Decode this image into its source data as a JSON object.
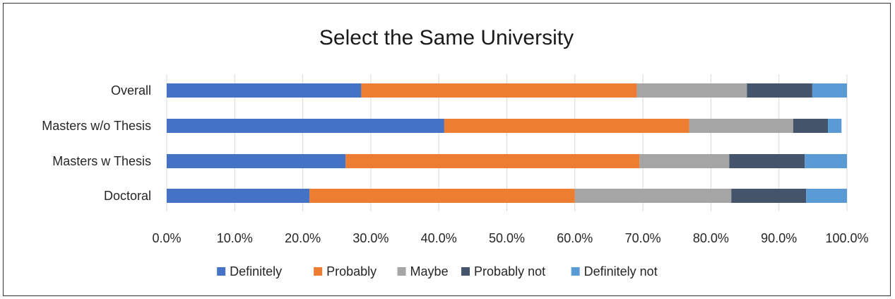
{
  "chart_data": {
    "type": "bar",
    "orientation": "horizontal",
    "stacked": true,
    "title": "Select the Same University",
    "categories": [
      "Overall",
      "Masters w/o Thesis",
      "Masters w Thesis",
      "Doctoral"
    ],
    "series": [
      {
        "name": "Definitely",
        "color": "#4472C4",
        "values": [
          28.6,
          40.8,
          26.3,
          21.0
        ]
      },
      {
        "name": "Probably",
        "color": "#ED7D31",
        "values": [
          40.5,
          36.0,
          43.2,
          39.0
        ]
      },
      {
        "name": "Maybe",
        "color": "#A5A5A5",
        "values": [
          16.2,
          15.3,
          13.2,
          23.0
        ]
      },
      {
        "name": "Probably not",
        "color": "#44546A",
        "values": [
          9.6,
          5.1,
          11.1,
          11.0
        ]
      },
      {
        "name": "Definitely not",
        "color": "#5B9BD5",
        "values": [
          5.1,
          2.0,
          6.2,
          6.0
        ]
      }
    ],
    "xlim": [
      0,
      100
    ],
    "x_ticks": [
      "0.0%",
      "10.0%",
      "20.0%",
      "30.0%",
      "40.0%",
      "50.0%",
      "60.0%",
      "70.0%",
      "80.0%",
      "90.0%",
      "100.0%"
    ],
    "grid": true,
    "legend_position": "bottom"
  }
}
